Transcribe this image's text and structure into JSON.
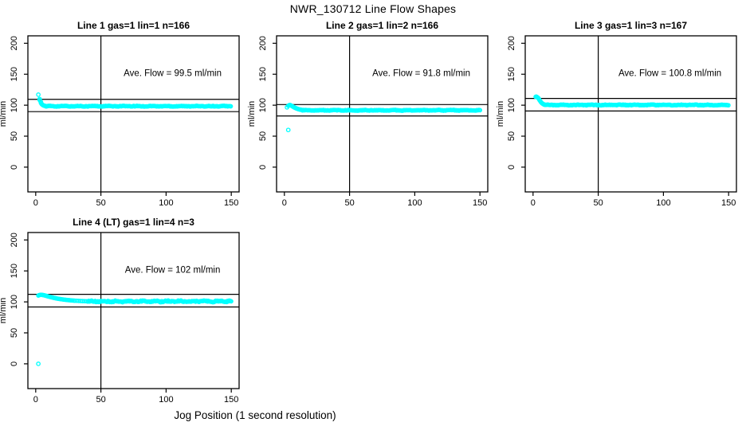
{
  "page": {
    "title": "NWR_130712  Line Flow Shapes",
    "xlabel": "Jog Position (1 second resolution)",
    "background": "#ffffff"
  },
  "colors": {
    "points": "#00ffff",
    "axis": "#000000",
    "text": "#000000"
  },
  "chart_data": [
    {
      "type": "scatter",
      "title": "Line 1 gas=1 lin=1 n=166",
      "annotation": "Ave. Flow =  99.5  ml/min",
      "ave_flow": 99.5,
      "ylabel": "ml/min",
      "xlim": [
        -6,
        156
      ],
      "ylim": [
        -40,
        212
      ],
      "x_ticks": [
        0,
        50,
        100,
        150
      ],
      "y_ticks": [
        0,
        50,
        100,
        150,
        200
      ],
      "ref_lines_y": [
        109.5,
        89.6
      ],
      "crosshair_x": 50,
      "outliers": [
        [
          2,
          117
        ]
      ],
      "transient": [
        [
          3,
          110
        ],
        [
          3,
          108.5
        ],
        [
          3.5,
          107
        ],
        [
          4,
          105
        ],
        [
          4,
          103.5
        ],
        [
          4.5,
          102
        ],
        [
          5,
          101
        ],
        [
          5.5,
          100.2
        ],
        [
          6,
          99.6
        ],
        [
          6.5,
          99.2
        ],
        [
          7,
          98.9
        ],
        [
          7.5,
          98.7
        ],
        [
          8,
          98.5
        ]
      ],
      "steady": {
        "from": 8,
        "to": 150,
        "step": 0.8,
        "level": 98.4,
        "amp": 0.8
      }
    },
    {
      "type": "scatter",
      "title": "Line 2 gas=1 lin=2 n=166",
      "annotation": "Ave. Flow =  91.8  ml/min",
      "ave_flow": 91.8,
      "ylabel": "ml/min",
      "xlim": [
        -6,
        156
      ],
      "ylim": [
        -40,
        212
      ],
      "x_ticks": [
        0,
        50,
        100,
        150
      ],
      "y_ticks": [
        0,
        50,
        100,
        150,
        200
      ],
      "ref_lines_y": [
        101.0,
        82.6
      ],
      "crosshair_x": 50,
      "outliers": [
        [
          3,
          60
        ]
      ],
      "transient": [
        [
          2,
          96.5
        ],
        [
          3,
          99
        ],
        [
          3.5,
          99.8
        ],
        [
          4,
          100.4
        ],
        [
          4.5,
          100.2
        ],
        [
          5,
          99.6
        ],
        [
          5.5,
          99
        ],
        [
          6,
          98.4
        ],
        [
          6.5,
          97.8
        ],
        [
          7,
          97.2
        ],
        [
          7.5,
          96.6
        ],
        [
          8,
          96
        ],
        [
          8.5,
          95.5
        ],
        [
          9,
          95
        ],
        [
          9.5,
          94.6
        ],
        [
          10,
          94.2
        ],
        [
          10.5,
          93.8
        ],
        [
          11,
          93.5
        ],
        [
          11.5,
          93.2
        ],
        [
          12,
          92.9
        ],
        [
          12.5,
          92.7
        ],
        [
          13,
          92.5
        ],
        [
          13.5,
          92.3
        ],
        [
          14,
          92.1
        ]
      ],
      "steady": {
        "from": 14,
        "to": 150,
        "step": 0.8,
        "level": 91.8,
        "amp": 0.8
      }
    },
    {
      "type": "scatter",
      "title": "Line 3 gas=1 lin=3 n=167",
      "annotation": "Ave. Flow =  100.8  ml/min",
      "ave_flow": 100.8,
      "ylabel": "ml/min",
      "xlim": [
        -6,
        156
      ],
      "ylim": [
        -40,
        212
      ],
      "x_ticks": [
        0,
        50,
        100,
        150
      ],
      "y_ticks": [
        0,
        50,
        100,
        150,
        200
      ],
      "ref_lines_y": [
        110.9,
        90.7
      ],
      "crosshair_x": 50,
      "outliers": [],
      "transient": [
        [
          2,
          113.5
        ],
        [
          2.5,
          113.8
        ],
        [
          3,
          113.2
        ],
        [
          3.5,
          112.5
        ],
        [
          4,
          111.5
        ],
        [
          4.5,
          110
        ],
        [
          5,
          108.3
        ],
        [
          5.5,
          106.7
        ],
        [
          6,
          105.2
        ],
        [
          6.5,
          104
        ],
        [
          7,
          103
        ],
        [
          7.5,
          102.2
        ],
        [
          8,
          101.6
        ],
        [
          8.5,
          101.1
        ],
        [
          9,
          100.8
        ]
      ],
      "steady": {
        "from": 9,
        "to": 150,
        "step": 0.8,
        "level": 100.4,
        "amp": 0.8
      }
    },
    {
      "type": "scatter",
      "title": "Line 4 (LT) gas=1 lin=4 n=3",
      "annotation": "Ave. Flow =  102  ml/min",
      "ave_flow": 102,
      "ylabel": "ml/min",
      "xlim": [
        -6,
        156
      ],
      "ylim": [
        -40,
        212
      ],
      "x_ticks": [
        0,
        50,
        100,
        150
      ],
      "y_ticks": [
        0,
        50,
        100,
        150,
        200
      ],
      "ref_lines_y": [
        112.2,
        91.8
      ],
      "crosshair_x": 50,
      "outliers": [
        [
          2,
          0
        ]
      ],
      "transient": [
        [
          2,
          110.3
        ],
        [
          2.7,
          110.9
        ],
        [
          3.4,
          111.3
        ],
        [
          4.1,
          111.4
        ],
        [
          4.8,
          111.3
        ],
        [
          5.5,
          111.1
        ],
        [
          6.2,
          110.8
        ],
        [
          6.9,
          110.4
        ],
        [
          7.6,
          110
        ],
        [
          8.3,
          109.6
        ],
        [
          9,
          109.2
        ],
        [
          9.7,
          108.8
        ],
        [
          10.4,
          108.4
        ],
        [
          11.1,
          108
        ],
        [
          11.8,
          107.6
        ],
        [
          12.5,
          107.2
        ],
        [
          13.2,
          106.9
        ],
        [
          13.9,
          106.5
        ],
        [
          14.6,
          106.2
        ],
        [
          15.3,
          105.9
        ],
        [
          16,
          105.6
        ],
        [
          17,
          105.2
        ],
        [
          18,
          104.8
        ],
        [
          19,
          104.5
        ],
        [
          20,
          104.2
        ],
        [
          21,
          103.9
        ],
        [
          22,
          103.6
        ],
        [
          23,
          103.3
        ],
        [
          24,
          103.1
        ],
        [
          25,
          102.9
        ],
        [
          26,
          102.7
        ],
        [
          27,
          102.5
        ],
        [
          28,
          102.3
        ],
        [
          29,
          102.1
        ],
        [
          30,
          102
        ],
        [
          31.5,
          101.8
        ],
        [
          33,
          101.6
        ],
        [
          34.5,
          101.4
        ],
        [
          36,
          101.3
        ],
        [
          37.5,
          101.2
        ],
        [
          39,
          101.1
        ]
      ],
      "steady": {
        "from": 40,
        "to": 150,
        "step": 0.7,
        "level": 100.9,
        "amp": 1.6
      }
    }
  ]
}
